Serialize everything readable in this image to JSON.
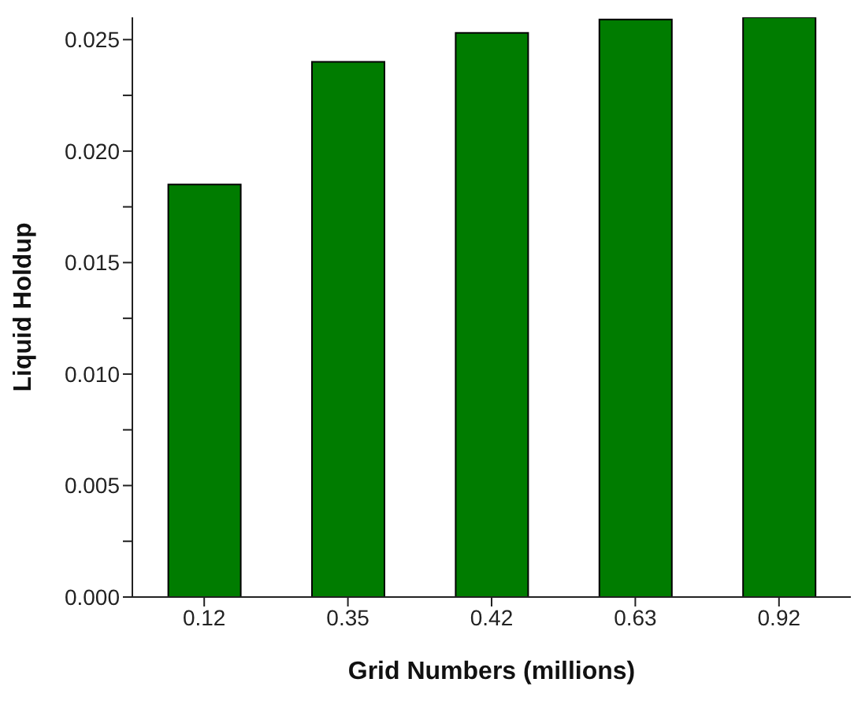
{
  "chart_data": {
    "type": "bar",
    "xlabel": "Grid Numbers (millions)",
    "ylabel": "Liquid Holdup",
    "categories": [
      "0.12",
      "0.35",
      "0.42",
      "0.63",
      "0.92"
    ],
    "values": [
      0.0185,
      0.024,
      0.0253,
      0.0259,
      0.026
    ],
    "color": "#007c00",
    "ylim": [
      0,
      0.026
    ],
    "yticks": [
      {
        "value": 0,
        "label": "0.000"
      },
      {
        "value": 0.0025,
        "label": null
      },
      {
        "value": 0.005,
        "label": "0.005"
      },
      {
        "value": 0.0075,
        "label": null
      },
      {
        "value": 0.01,
        "label": "0.010"
      },
      {
        "value": 0.0125,
        "label": null
      },
      {
        "value": 0.015,
        "label": "0.015"
      },
      {
        "value": 0.0175,
        "label": null
      },
      {
        "value": 0.02,
        "label": "0.020"
      },
      {
        "value": 0.0225,
        "label": null
      },
      {
        "value": 0.025,
        "label": "0.025"
      }
    ],
    "grid": false,
    "legend": false
  }
}
